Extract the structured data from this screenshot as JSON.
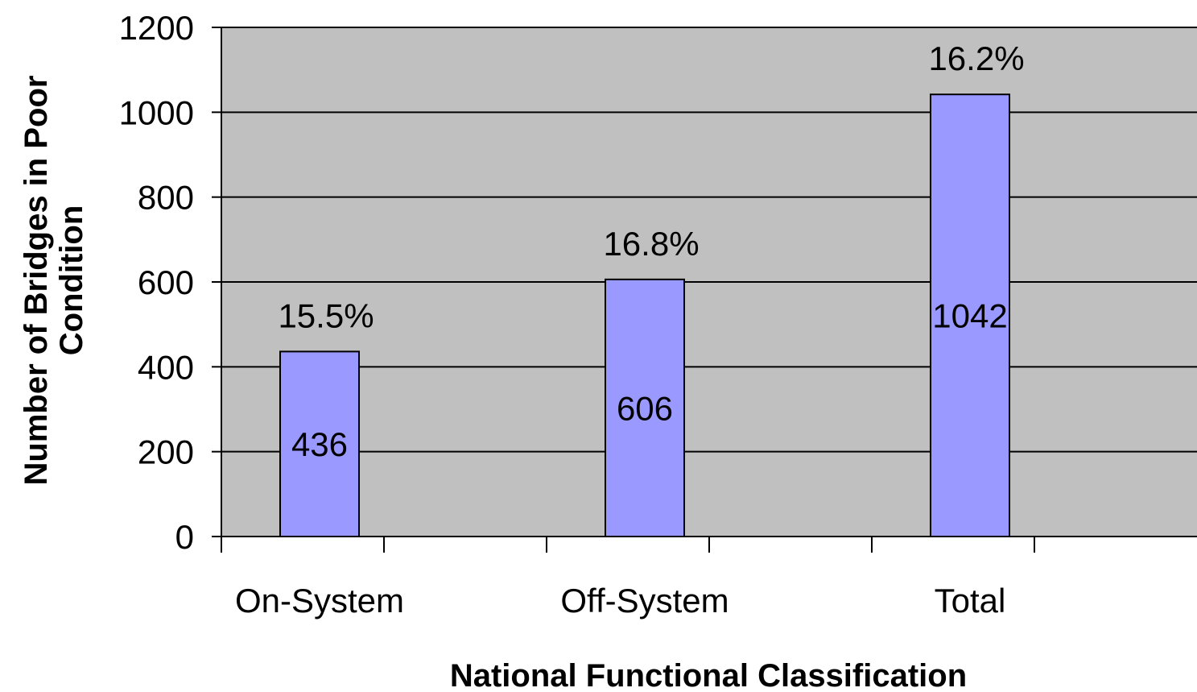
{
  "chart_data": {
    "type": "bar",
    "categories": [
      "On-System",
      "Off-System",
      "Total"
    ],
    "values": [
      436,
      606,
      1042
    ],
    "value_labels": [
      "436",
      "606",
      "1042"
    ],
    "percent_labels": [
      "15.5%",
      "16.8%",
      "16.2%"
    ],
    "title": "",
    "xlabel": "National Functional Classification",
    "ylabel_lines": [
      "Number of Bridges in Poor",
      "Condition"
    ],
    "ylim": [
      0,
      1200
    ],
    "yticks": [
      0,
      200,
      400,
      600,
      800,
      1000,
      1200
    ],
    "ytick_labels": [
      "0",
      "200",
      "400",
      "600",
      "800",
      "1000",
      "1200"
    ],
    "grid": true,
    "legend": "none",
    "colors": {
      "plot_background": "#c0c0c0",
      "bar_fill": "#9999ff",
      "bar_stroke": "#000000",
      "gridline": "#000000"
    }
  }
}
